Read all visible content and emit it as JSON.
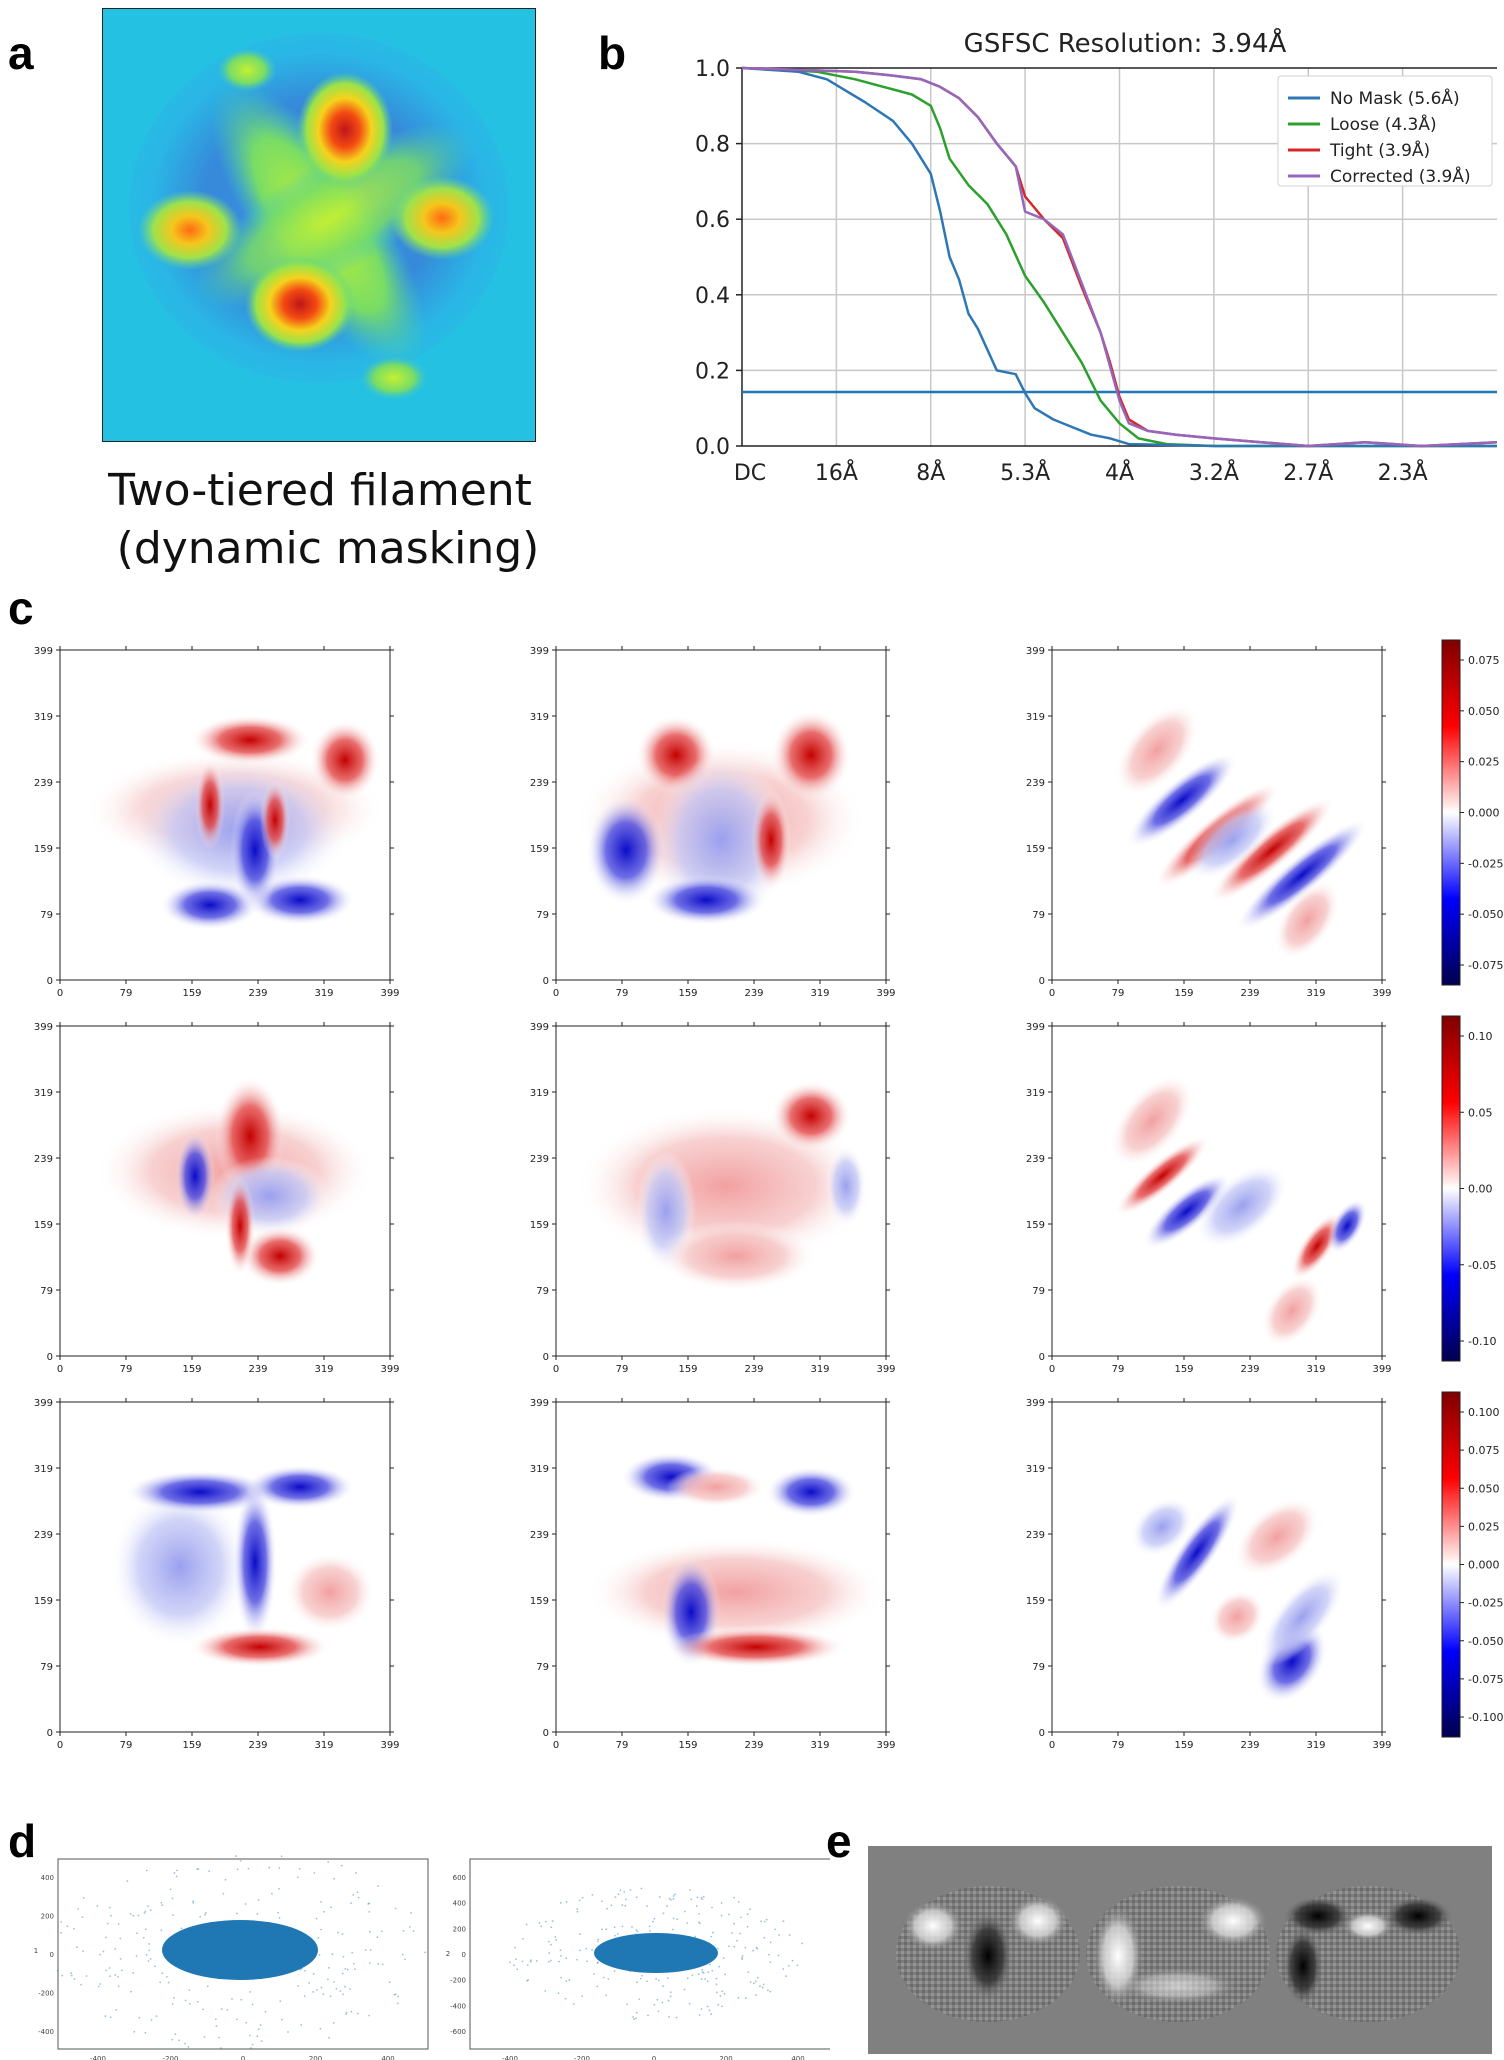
{
  "panels": {
    "a": "a",
    "b": "b",
    "c": "c",
    "d": "d",
    "e": "e"
  },
  "panel_a": {
    "caption_line1": "Two-tiered filament",
    "caption_line2": "(dynamic masking)"
  },
  "colors": {
    "no_mask": "#2f77b4",
    "loose": "#2ca02c",
    "tight": "#d62728",
    "corrected": "#9467bd",
    "threshold": "#1f77b4",
    "seismic_red": "#b40000",
    "seismic_blue": "#0000b4",
    "scatter": "#1f77b4"
  },
  "chart_data": [
    {
      "type": "line",
      "title": "GSFSC Resolution: 3.94Å",
      "x_tick_labels": [
        "DC",
        "16Å",
        "8Å",
        "5.3Å",
        "4Å",
        "3.2Å",
        "2.7Å",
        "2.3Å"
      ],
      "x_tick_positions": [
        0,
        1,
        2,
        3,
        4,
        5,
        6,
        7
      ],
      "xlim": [
        0,
        8
      ],
      "ylim": [
        0,
        1
      ],
      "y_ticks": [
        "0.0",
        "0.2",
        "0.4",
        "0.6",
        "0.8",
        "1.0"
      ],
      "grid": true,
      "legend_position": "top-right",
      "threshold": 0.143,
      "series": [
        {
          "name": "No Mask (5.6Å)",
          "x": [
            0,
            0.6,
            0.9,
            1.1,
            1.3,
            1.6,
            1.8,
            2.0,
            2.1,
            2.2,
            2.3,
            2.4,
            2.5,
            2.7,
            2.9,
            3.0,
            3.1,
            3.3,
            3.5,
            3.7,
            3.9,
            4.1,
            5,
            8
          ],
          "y": [
            1,
            0.99,
            0.97,
            0.94,
            0.91,
            0.86,
            0.8,
            0.72,
            0.62,
            0.5,
            0.44,
            0.35,
            0.31,
            0.2,
            0.19,
            0.14,
            0.1,
            0.07,
            0.05,
            0.03,
            0.02,
            0.005,
            0,
            0
          ]
        },
        {
          "name": "Loose (4.3Å)",
          "x": [
            0,
            0.8,
            1.2,
            1.5,
            1.8,
            2.0,
            2.1,
            2.2,
            2.4,
            2.6,
            2.8,
            3.0,
            3.2,
            3.4,
            3.6,
            3.8,
            4.0,
            4.2,
            4.5,
            5,
            8
          ],
          "y": [
            1,
            0.99,
            0.97,
            0.95,
            0.93,
            0.9,
            0.84,
            0.76,
            0.69,
            0.64,
            0.56,
            0.45,
            0.38,
            0.3,
            0.22,
            0.12,
            0.06,
            0.02,
            0.005,
            0,
            0
          ]
        },
        {
          "name": "Tight (3.9Å)",
          "x": [
            0,
            1.2,
            1.6,
            1.9,
            2.1,
            2.3,
            2.5,
            2.7,
            2.9,
            3.0,
            3.2,
            3.4,
            3.6,
            3.8,
            3.9,
            4.0,
            4.1,
            4.3,
            4.6,
            5.0,
            5.5,
            6.0,
            6.6,
            7.2,
            7.6,
            8
          ],
          "y": [
            1,
            0.99,
            0.98,
            0.97,
            0.95,
            0.92,
            0.87,
            0.8,
            0.74,
            0.66,
            0.6,
            0.55,
            0.42,
            0.3,
            0.22,
            0.13,
            0.07,
            0.04,
            0.03,
            0.02,
            0.01,
            0.0,
            0.01,
            0.0,
            0.005,
            0.01
          ]
        },
        {
          "name": "Corrected (3.9Å)",
          "x": [
            0,
            1.2,
            1.6,
            1.9,
            2.1,
            2.3,
            2.5,
            2.7,
            2.9,
            3.0,
            3.2,
            3.4,
            3.6,
            3.8,
            3.9,
            4.0,
            4.1,
            4.3,
            4.6,
            5.0,
            5.5,
            6.0,
            6.6,
            7.2,
            7.6,
            8
          ],
          "y": [
            1,
            0.99,
            0.98,
            0.97,
            0.95,
            0.92,
            0.87,
            0.8,
            0.74,
            0.62,
            0.6,
            0.56,
            0.43,
            0.3,
            0.21,
            0.12,
            0.06,
            0.04,
            0.03,
            0.02,
            0.01,
            0.0,
            0.01,
            0.0,
            0.005,
            0.01
          ]
        }
      ]
    },
    {
      "type": "heatmap",
      "grid_rows": 3,
      "grid_cols": 3,
      "tick_labels": [
        "0",
        "79",
        "159",
        "239",
        "319",
        "399"
      ],
      "colorbars": [
        {
          "ticks": [
            "0.075",
            "0.050",
            "0.025",
            "0.000",
            "-0.025",
            "-0.050",
            "-0.075"
          ]
        },
        {
          "ticks": [
            "0.10",
            "0.05",
            "0.00",
            "-0.05",
            "-0.10"
          ]
        },
        {
          "ticks": [
            "0.100",
            "0.075",
            "0.050",
            "0.025",
            "0.000",
            "-0.025",
            "-0.050",
            "-0.075",
            "-0.100"
          ]
        }
      ]
    },
    {
      "type": "scatter",
      "plots": [
        {
          "ylabel": "1",
          "x_ticks": [
            "-400",
            "-200",
            "0",
            "200",
            "400"
          ],
          "y_ticks": [
            "400",
            "200",
            "0",
            "-200",
            "-400"
          ]
        },
        {
          "ylabel": "2",
          "x_ticks": [
            "-400",
            "-200",
            "0",
            "200",
            "400"
          ],
          "y_ticks": [
            "600",
            "400",
            "200",
            "0",
            "-200",
            "-400",
            "-600"
          ]
        }
      ]
    }
  ]
}
